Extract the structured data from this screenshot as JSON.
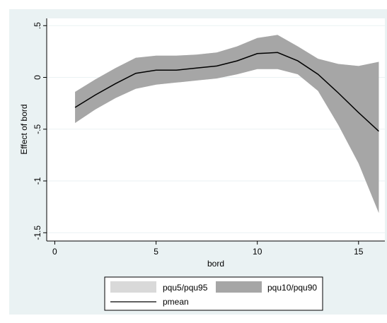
{
  "chart_data": {
    "type": "area",
    "xlabel": "bord",
    "ylabel": "Effect of bord",
    "xlim": [
      -0.4,
      16.3
    ],
    "ylim": [
      -1.58,
      0.57
    ],
    "x_ticks": [
      0,
      5,
      10,
      15
    ],
    "x_tick_labels": [
      "0",
      "5",
      "10",
      "15"
    ],
    "y_ticks": [
      0.5,
      0,
      -0.5,
      -1,
      -1.5
    ],
    "y_tick_labels": [
      ".5",
      "0",
      "-.5",
      "-1",
      "-1.5"
    ],
    "grid": "horizontal",
    "legend_position": "bottom",
    "x": [
      1,
      2,
      3,
      4,
      5,
      6,
      7,
      8,
      9,
      10,
      11,
      12,
      13,
      14,
      15,
      16
    ],
    "series": [
      {
        "name": "pqu5/pqu95",
        "color": "#d9d9d9",
        "lower": [
          -0.44,
          -0.31,
          -0.2,
          -0.11,
          -0.07,
          -0.05,
          -0.03,
          -0.01,
          0.03,
          0.08,
          0.08,
          0.03,
          -0.13,
          -0.46,
          -0.83,
          -1.31
        ],
        "upper": [
          -0.14,
          -0.02,
          0.09,
          0.19,
          0.21,
          0.21,
          0.22,
          0.24,
          0.3,
          0.38,
          0.41,
          0.3,
          0.18,
          0.13,
          0.11,
          0.15
        ]
      },
      {
        "name": "pqu10/pqu90",
        "color": "#a6a6a6",
        "lower": [
          -0.44,
          -0.31,
          -0.2,
          -0.11,
          -0.07,
          -0.05,
          -0.03,
          -0.01,
          0.03,
          0.08,
          0.08,
          0.03,
          -0.13,
          -0.46,
          -0.83,
          -1.31
        ],
        "upper": [
          -0.14,
          -0.02,
          0.09,
          0.19,
          0.21,
          0.21,
          0.22,
          0.24,
          0.3,
          0.38,
          0.41,
          0.3,
          0.18,
          0.13,
          0.11,
          0.15
        ]
      },
      {
        "name": "pmean",
        "color": "#000000",
        "values": [
          -0.29,
          -0.17,
          -0.06,
          0.04,
          0.07,
          0.07,
          0.09,
          0.11,
          0.16,
          0.23,
          0.24,
          0.16,
          0.03,
          -0.15,
          -0.34,
          -0.52
        ]
      }
    ],
    "legend": {
      "entries": [
        "pqu5/pqu95",
        "pqu10/pqu90",
        "pmean"
      ]
    }
  }
}
